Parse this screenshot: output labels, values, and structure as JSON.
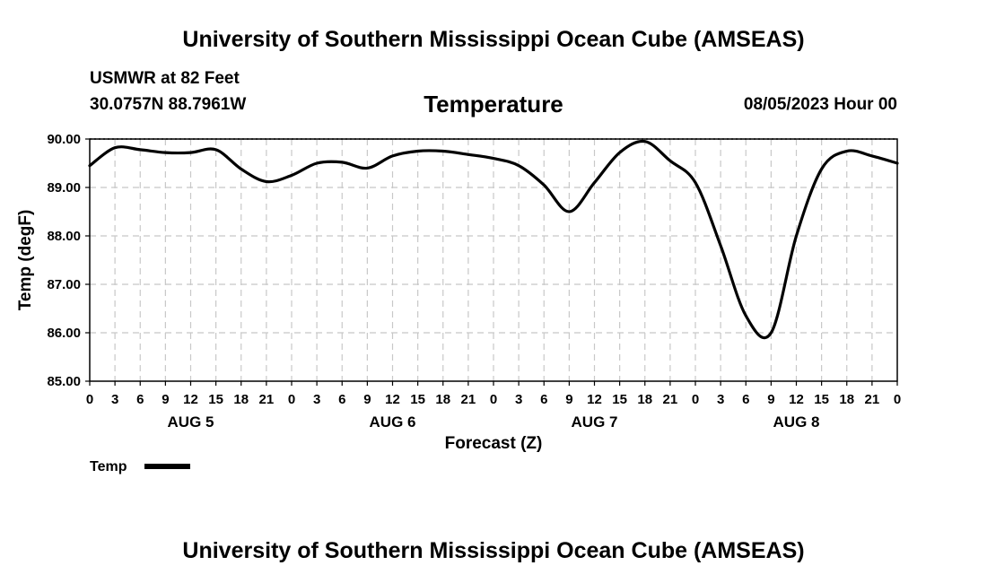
{
  "page": {
    "title": "University of Southern Mississippi Ocean Cube (AMSEAS)",
    "footer_title": "University of Southern Mississippi Ocean Cube (AMSEAS)",
    "station_name": "USMWR at 82 Feet",
    "station_coords": "30.0757N  88.7961W",
    "date_label": "08/05/2023 Hour 00"
  },
  "chart_data": {
    "type": "line",
    "title": "Temperature",
    "xlabel": "Forecast (Z)",
    "ylabel": "Temp (degF)",
    "ylim": [
      85.0,
      90.0
    ],
    "y_ticks": [
      "85.00",
      "86.00",
      "87.00",
      "88.00",
      "89.00",
      "90.00"
    ],
    "x_hours_range": [
      0,
      96
    ],
    "x_tick_labels": [
      "0",
      "3",
      "6",
      "9",
      "12",
      "15",
      "18",
      "21",
      "0",
      "3",
      "6",
      "9",
      "12",
      "15",
      "18",
      "21",
      "0",
      "3",
      "6",
      "9",
      "12",
      "15",
      "18",
      "21",
      "0",
      "3",
      "6",
      "9",
      "12",
      "15",
      "18",
      "21",
      "0"
    ],
    "day_labels": [
      {
        "label": "AUG 5",
        "hour": 12
      },
      {
        "label": "AUG 6",
        "hour": 36
      },
      {
        "label": "AUG 7",
        "hour": 60
      },
      {
        "label": "AUG 8",
        "hour": 84
      }
    ],
    "grid": true,
    "legend_position": "bottom-left",
    "colors": {
      "line": "#000000",
      "grid": "#c8c8c8"
    },
    "series": [
      {
        "name": "Temp",
        "x": [
          0,
          3,
          6,
          9,
          12,
          15,
          18,
          21,
          24,
          27,
          30,
          33,
          36,
          39,
          42,
          45,
          48,
          51,
          54,
          57,
          60,
          63,
          66,
          69,
          72,
          75,
          78,
          81,
          84,
          87,
          90,
          93,
          96
        ],
        "values": [
          89.45,
          89.82,
          89.78,
          89.72,
          89.72,
          89.78,
          89.38,
          89.12,
          89.25,
          89.5,
          89.52,
          89.4,
          89.65,
          89.75,
          89.75,
          89.68,
          89.6,
          89.45,
          89.05,
          88.5,
          89.1,
          89.72,
          89.95,
          89.55,
          89.1,
          87.8,
          86.35,
          86.0,
          88.0,
          89.38,
          89.75,
          89.65,
          89.5
        ]
      }
    ]
  }
}
